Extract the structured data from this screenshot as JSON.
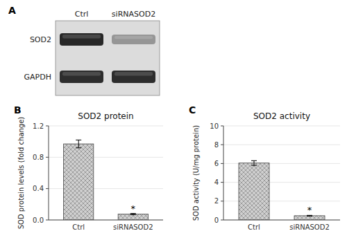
{
  "chart_data": [
    {
      "type": "blot",
      "label": "A",
      "categories": [
        "Ctrl",
        "siRNASOD2"
      ],
      "series": [
        {
          "name": "SOD2",
          "colors": [
            "#282828",
            "#969696"
          ]
        },
        {
          "name": "GAPDH",
          "colors": [
            "#2d2d2d",
            "#2d2d2d"
          ]
        }
      ]
    },
    {
      "type": "bar",
      "label": "B",
      "title": "SOD2 protein",
      "categories": [
        "Ctrl",
        "siRNASOD2"
      ],
      "values": [
        0.97,
        0.075
      ],
      "errors": [
        0.05,
        0.008
      ],
      "ylabel": "SOD protein levels (fold change)",
      "ylim": [
        0,
        1.2
      ],
      "yticks": [
        {
          "value": 0,
          "label": "0.0"
        },
        0.4,
        0.8,
        1.2
      ],
      "color": "#d0d0d0",
      "annotations": [
        {
          "text": "*",
          "category": "siRNASOD2"
        }
      ]
    },
    {
      "type": "bar",
      "label": "C",
      "title": "SOD2 activity",
      "categories": [
        "Ctrl",
        "siRNASOD2"
      ],
      "values": [
        6.05,
        0.45
      ],
      "errors": [
        0.25,
        0.04
      ],
      "ylabel": "SOD activity (U/mg protein)",
      "ylim": [
        0,
        10
      ],
      "yticks": [
        0,
        2,
        4,
        6,
        8,
        10
      ],
      "color": "#d0d0d0",
      "annotations": [
        {
          "text": "*",
          "category": "siRNASOD2"
        }
      ]
    }
  ]
}
